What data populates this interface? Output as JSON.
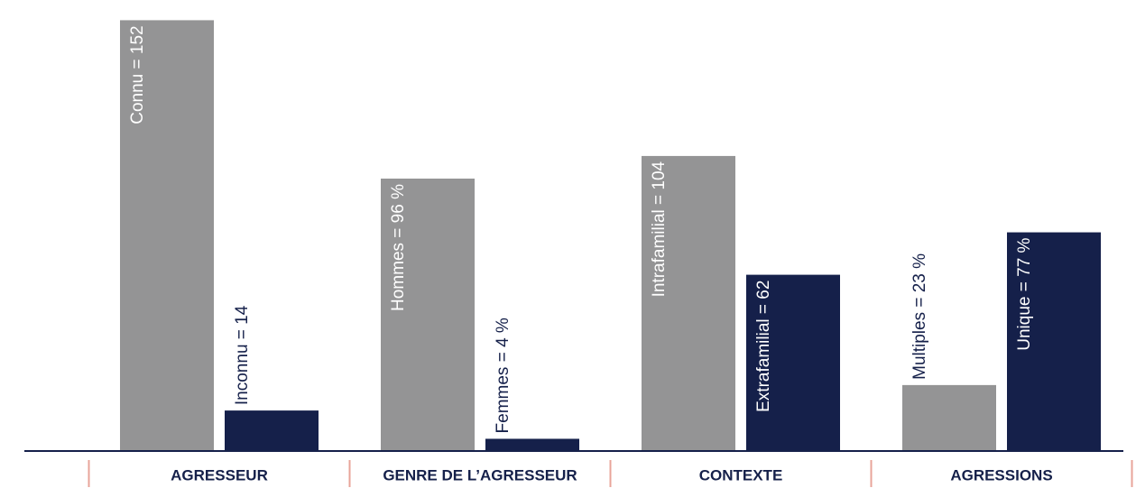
{
  "chart_data": {
    "type": "bar",
    "categories": [
      "AGRESSEUR",
      "GENRE DE L’AGRESSEUR",
      "CONTEXTE",
      "AGRESSIONS"
    ],
    "series": [
      {
        "color": "#949495",
        "values": [
          152,
          96,
          104,
          23
        ],
        "value_labels": [
          "Connu = 152",
          "Hommes = 96 %",
          "Intrafamilial = 104",
          "Multiples = 23 %"
        ]
      },
      {
        "color": "#15204a",
        "values": [
          14,
          4,
          62,
          77
        ],
        "value_labels": [
          "Inconnu = 14",
          "Femmes = 4 %",
          "Extrafamilial = 62",
          "Unique = 77 %"
        ]
      }
    ],
    "ylim": [
      0,
      155
    ]
  }
}
